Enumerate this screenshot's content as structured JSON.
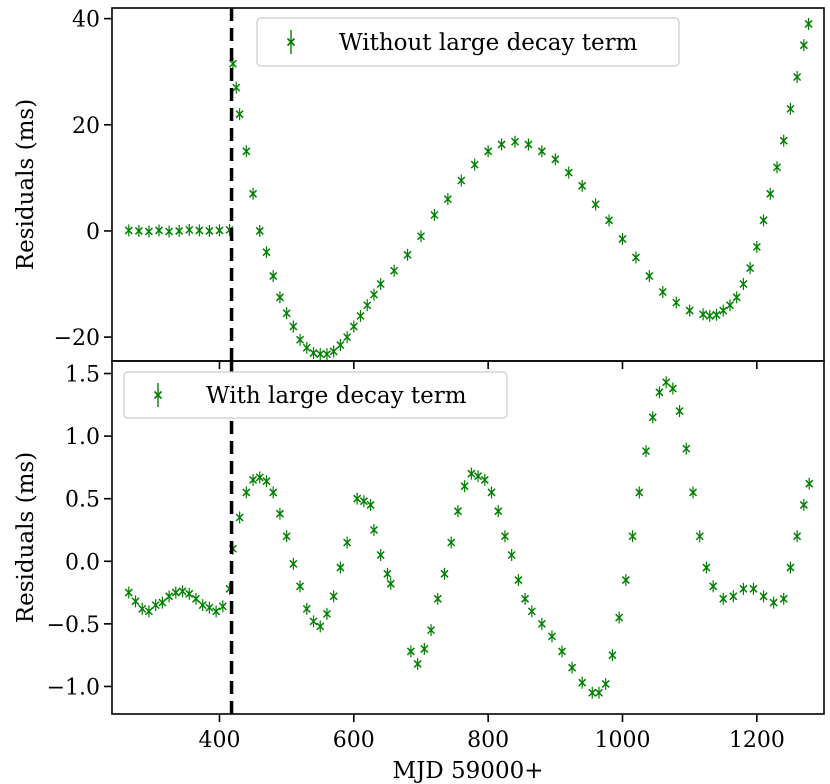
{
  "chart_data": [
    {
      "type": "scatter",
      "title": "",
      "xlabel": "",
      "ylabel": "Residuals (ms)",
      "xlim": [
        240,
        1300
      ],
      "ylim": [
        -24.5,
        42
      ],
      "y_ticks": [
        -20,
        0,
        20,
        40
      ],
      "x_ticks": [
        400,
        600,
        800,
        1000,
        1200
      ],
      "marker": "x with error bars",
      "legend": {
        "placement": "top-right",
        "entries": [
          "Without large decay term"
        ]
      },
      "vline": {
        "x": 418,
        "style": "dashed",
        "color": "#000000"
      },
      "series": [
        {
          "name": "Without large decay term",
          "color": "#008000",
          "points": [
            [
              265,
              0.1
            ],
            [
              280,
              0.0
            ],
            [
              295,
              -0.1
            ],
            [
              310,
              0.1
            ],
            [
              325,
              -0.1
            ],
            [
              340,
              0.0
            ],
            [
              355,
              0.2
            ],
            [
              370,
              0.1
            ],
            [
              385,
              0.0
            ],
            [
              400,
              0.1
            ],
            [
              415,
              0.2
            ],
            [
              420,
              31.5
            ],
            [
              425,
              27
            ],
            [
              430,
              22
            ],
            [
              440,
              15
            ],
            [
              450,
              7
            ],
            [
              460,
              0
            ],
            [
              470,
              -4
            ],
            [
              480,
              -8.5
            ],
            [
              490,
              -12.5
            ],
            [
              500,
              -15.5
            ],
            [
              510,
              -18
            ],
            [
              520,
              -20.5
            ],
            [
              530,
              -22
            ],
            [
              540,
              -23
            ],
            [
              550,
              -23.2
            ],
            [
              560,
              -23.2
            ],
            [
              570,
              -22.7
            ],
            [
              580,
              -21.5
            ],
            [
              590,
              -20
            ],
            [
              600,
              -18
            ],
            [
              610,
              -16
            ],
            [
              620,
              -14
            ],
            [
              630,
              -12
            ],
            [
              640,
              -10
            ],
            [
              660,
              -7.5
            ],
            [
              680,
              -4.5
            ],
            [
              700,
              -1
            ],
            [
              720,
              3
            ],
            [
              740,
              6
            ],
            [
              760,
              9.5
            ],
            [
              780,
              12.5
            ],
            [
              800,
              15
            ],
            [
              820,
              16.3
            ],
            [
              840,
              16.8
            ],
            [
              860,
              16.3
            ],
            [
              880,
              15
            ],
            [
              900,
              13.5
            ],
            [
              920,
              11
            ],
            [
              940,
              8.5
            ],
            [
              960,
              5
            ],
            [
              980,
              2
            ],
            [
              1000,
              -1.5
            ],
            [
              1020,
              -5
            ],
            [
              1040,
              -8.5
            ],
            [
              1060,
              -11.5
            ],
            [
              1080,
              -13.5
            ],
            [
              1100,
              -15
            ],
            [
              1120,
              -15.7
            ],
            [
              1130,
              -16
            ],
            [
              1140,
              -15.8
            ],
            [
              1150,
              -15
            ],
            [
              1160,
              -14
            ],
            [
              1170,
              -12.5
            ],
            [
              1180,
              -10
            ],
            [
              1190,
              -7
            ],
            [
              1200,
              -3
            ],
            [
              1210,
              2
            ],
            [
              1220,
              7
            ],
            [
              1230,
              12
            ],
            [
              1240,
              17
            ],
            [
              1250,
              23
            ],
            [
              1260,
              29
            ],
            [
              1270,
              35
            ],
            [
              1277,
              39
            ]
          ]
        }
      ]
    },
    {
      "type": "scatter",
      "title": "",
      "xlabel": "MJD 59000+",
      "ylabel": "Residuals (ms)",
      "xlim": [
        240,
        1300
      ],
      "ylim": [
        -1.22,
        1.6
      ],
      "y_ticks": [
        -1.0,
        -0.5,
        0.0,
        0.5,
        1.0,
        1.5
      ],
      "y_tick_labels": [
        "−1.0",
        "−0.5",
        "0.0",
        "0.5",
        "1.0",
        "1.5"
      ],
      "x_ticks": [
        400,
        600,
        800,
        1000,
        1200
      ],
      "marker": "x with error bars",
      "legend": {
        "placement": "top-left",
        "entries": [
          "With large decay term"
        ]
      },
      "vline": {
        "x": 418,
        "style": "dashed",
        "color": "#000000"
      },
      "series": [
        {
          "name": "With large decay term",
          "color": "#008000",
          "points": [
            [
              265,
              -0.25
            ],
            [
              275,
              -0.32
            ],
            [
              285,
              -0.38
            ],
            [
              295,
              -0.4
            ],
            [
              305,
              -0.35
            ],
            [
              315,
              -0.33
            ],
            [
              325,
              -0.28
            ],
            [
              335,
              -0.25
            ],
            [
              345,
              -0.24
            ],
            [
              355,
              -0.26
            ],
            [
              365,
              -0.3
            ],
            [
              375,
              -0.35
            ],
            [
              385,
              -0.37
            ],
            [
              395,
              -0.4
            ],
            [
              405,
              -0.36
            ],
            [
              415,
              -0.22
            ],
            [
              420,
              0.1
            ],
            [
              430,
              0.35
            ],
            [
              440,
              0.55
            ],
            [
              450,
              0.65
            ],
            [
              460,
              0.67
            ],
            [
              470,
              0.64
            ],
            [
              480,
              0.55
            ],
            [
              490,
              0.38
            ],
            [
              500,
              0.2
            ],
            [
              510,
              -0.02
            ],
            [
              520,
              -0.2
            ],
            [
              530,
              -0.38
            ],
            [
              540,
              -0.48
            ],
            [
              550,
              -0.52
            ],
            [
              560,
              -0.42
            ],
            [
              570,
              -0.28
            ],
            [
              580,
              -0.05
            ],
            [
              590,
              0.15
            ],
            [
              605,
              0.5
            ],
            [
              615,
              0.48
            ],
            [
              625,
              0.45
            ],
            [
              630,
              0.25
            ],
            [
              640,
              0.05
            ],
            [
              650,
              -0.1
            ],
            [
              655,
              -0.18
            ],
            [
              685,
              -0.72
            ],
            [
              695,
              -0.82
            ],
            [
              705,
              -0.7
            ],
            [
              715,
              -0.55
            ],
            [
              725,
              -0.3
            ],
            [
              735,
              -0.1
            ],
            [
              745,
              0.15
            ],
            [
              755,
              0.4
            ],
            [
              765,
              0.6
            ],
            [
              775,
              0.7
            ],
            [
              785,
              0.68
            ],
            [
              795,
              0.65
            ],
            [
              805,
              0.55
            ],
            [
              815,
              0.4
            ],
            [
              825,
              0.2
            ],
            [
              835,
              0.05
            ],
            [
              845,
              -0.15
            ],
            [
              855,
              -0.3
            ],
            [
              865,
              -0.4
            ],
            [
              880,
              -0.5
            ],
            [
              895,
              -0.6
            ],
            [
              910,
              -0.72
            ],
            [
              925,
              -0.85
            ],
            [
              940,
              -0.97
            ],
            [
              955,
              -1.05
            ],
            [
              965,
              -1.05
            ],
            [
              975,
              -0.98
            ],
            [
              985,
              -0.75
            ],
            [
              995,
              -0.45
            ],
            [
              1005,
              -0.15
            ],
            [
              1015,
              0.2
            ],
            [
              1025,
              0.55
            ],
            [
              1035,
              0.88
            ],
            [
              1045,
              1.15
            ],
            [
              1055,
              1.35
            ],
            [
              1065,
              1.43
            ],
            [
              1075,
              1.38
            ],
            [
              1085,
              1.2
            ],
            [
              1095,
              0.9
            ],
            [
              1105,
              0.55
            ],
            [
              1115,
              0.2
            ],
            [
              1125,
              -0.05
            ],
            [
              1135,
              -0.2
            ],
            [
              1150,
              -0.3
            ],
            [
              1165,
              -0.28
            ],
            [
              1180,
              -0.22
            ],
            [
              1195,
              -0.22
            ],
            [
              1210,
              -0.28
            ],
            [
              1225,
              -0.33
            ],
            [
              1240,
              -0.3
            ],
            [
              1250,
              -0.05
            ],
            [
              1260,
              0.2
            ],
            [
              1270,
              0.45
            ],
            [
              1278,
              0.62
            ]
          ]
        }
      ]
    }
  ]
}
